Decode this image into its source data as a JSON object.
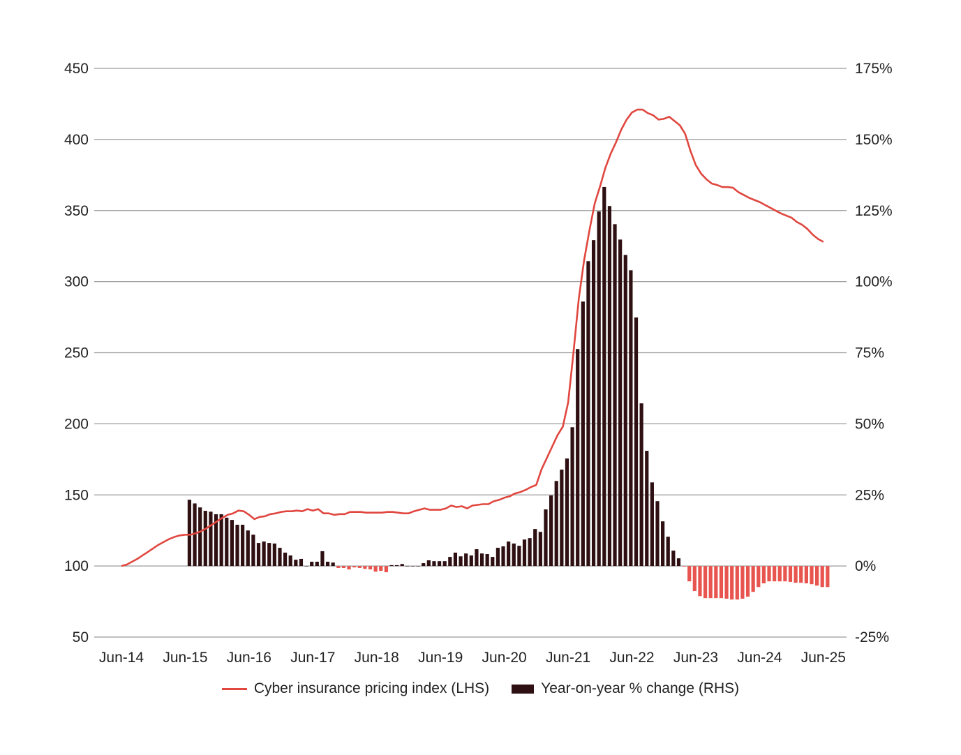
{
  "chart_data": {
    "type": "bar+line",
    "title": "",
    "x_tick_labels": [
      "Jun-14",
      "Jun-15",
      "Jun-16",
      "Jun-17",
      "Jun-18",
      "Jun-19",
      "Jun-20",
      "Jun-21",
      "Jun-22",
      "Jun-23",
      "Jun-24",
      "Jun-25"
    ],
    "left_axis": {
      "label": "LHS",
      "ylim": [
        50,
        450
      ],
      "ticks": [
        "450",
        "400",
        "350",
        "300",
        "250",
        "200",
        "150",
        "100",
        "50"
      ],
      "tick_values": [
        450,
        400,
        350,
        300,
        250,
        200,
        150,
        100,
        50
      ]
    },
    "right_axis": {
      "label": "RHS",
      "ylim": [
        -25,
        175
      ],
      "ticks": [
        "175%",
        "150%",
        "125%",
        "100%",
        "75%",
        "50%",
        "25%",
        "0%",
        "-25%"
      ]
    },
    "grid": true,
    "legend_position": "bottom",
    "series": [
      {
        "name": "Cyber insurance pricing index (LHS)",
        "type": "line",
        "axis": "left",
        "color": "#e0473f",
        "start": "Jun-14",
        "frequency": "monthly",
        "values": [
          100,
          101,
          103,
          105,
          107.5,
          110,
          112.5,
          115,
          117,
          119,
          120.5,
          121.5,
          122,
          122,
          123,
          124.5,
          126.5,
          129,
          131.5,
          134,
          136,
          137,
          139,
          138.5,
          136,
          133,
          134.5,
          135,
          136.5,
          137,
          138,
          138.5,
          138.5,
          139,
          138.5,
          140,
          139,
          140,
          137,
          137,
          136,
          136.5,
          136.5,
          138,
          138,
          138,
          137.5,
          137.5,
          137.5,
          137.5,
          138,
          138,
          137.5,
          137,
          137,
          138.5,
          139.5,
          140.5,
          139.5,
          139.5,
          139.5,
          140.5,
          142.5,
          141.5,
          142,
          140.5,
          142.5,
          143,
          143.5,
          143.5,
          145.5,
          146.5,
          148,
          149,
          151,
          152,
          153.5,
          155.5,
          157,
          168,
          176,
          184,
          192,
          198,
          215,
          250,
          288,
          315,
          336,
          355,
          367,
          380,
          390,
          398,
          407,
          414,
          419,
          421,
          421,
          418.5,
          417,
          414,
          414.5,
          416,
          413,
          410,
          404,
          392,
          382,
          376,
          372,
          369,
          368,
          366.5,
          366.5,
          366,
          363,
          361,
          359,
          357.5,
          356,
          354,
          352,
          350,
          348,
          346.5,
          345,
          342,
          340,
          337,
          333,
          330,
          328
        ]
      },
      {
        "name": "Year-on-year % change (RHS)",
        "type": "bar",
        "axis": "right",
        "color": "#2e0f12",
        "negative_color": "#e8554e",
        "start": "Jun-15",
        "frequency": "monthly",
        "values": [
          23.3,
          22,
          20.6,
          19.4,
          19.1,
          18.2,
          18.2,
          17,
          16.2,
          14.5,
          14.5,
          12.5,
          11,
          8.1,
          8.6,
          8.1,
          7.9,
          6.4,
          4.7,
          3.7,
          2.2,
          2.5,
          0,
          1.5,
          1.5,
          5.2,
          1.5,
          1.2,
          -0.7,
          -0.7,
          -1.2,
          -0.5,
          -0.7,
          -1,
          -1.2,
          -2,
          -1.7,
          -2.2,
          0.3,
          0.3,
          0.7,
          0,
          0,
          0,
          1,
          2,
          1.7,
          1.7,
          1.7,
          3.2,
          4.7,
          3.4,
          4.4,
          3.7,
          5.9,
          4.4,
          4.2,
          3.2,
          6.4,
          6.9,
          8.6,
          7.9,
          7.1,
          9.3,
          9.8,
          13,
          12,
          19.9,
          24.8,
          29.9,
          33.9,
          37.8,
          48.8,
          76.3,
          93,
          107.2,
          114.6,
          124.7,
          133.3,
          126.6,
          120.2,
          114.8,
          109.4,
          104,
          87.4,
          57.2,
          40.5,
          29.4,
          22.8,
          15.7,
          10.3,
          5.4,
          2.7,
          -0.2,
          -5.4,
          -8.8,
          -10.6,
          -11.3,
          -11.3,
          -11.3,
          -11.3,
          -11.5,
          -11.8,
          -11.8,
          -11.5,
          -10.8,
          -9.1,
          -7.4,
          -6.1,
          -5.4,
          -5.4,
          -5.4,
          -5.4,
          -5.6,
          -5.9,
          -5.9,
          -6.1,
          -6.4,
          -6.9,
          -7.4,
          -7.4
        ]
      }
    ]
  }
}
